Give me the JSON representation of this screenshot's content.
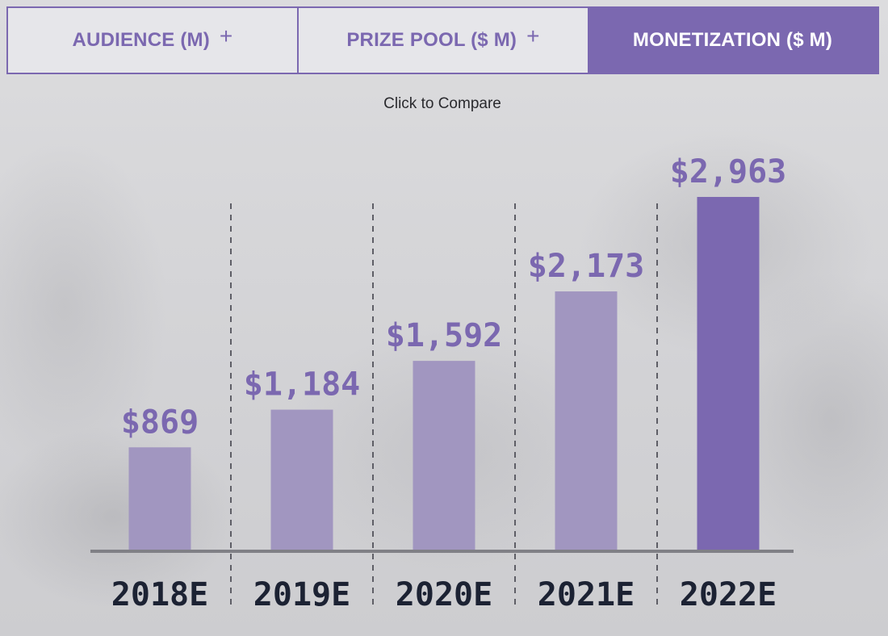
{
  "tabs": [
    {
      "label": "AUDIENCE (M)",
      "icon": "plus-icon",
      "glyph": "+",
      "active": false
    },
    {
      "label": "PRIZE POOL ($ M)",
      "icon": "plus-icon",
      "glyph": "+",
      "active": false
    },
    {
      "label": "MONETIZATION ($ M)",
      "active": true
    }
  ],
  "compare_hint": "Click to Compare",
  "colors": {
    "accent": "#7b68b0",
    "bar_light": "#a196c0",
    "bar_highlight": "#7b68b0",
    "category_text": "#1c2233"
  },
  "chart_data": {
    "type": "bar",
    "title": "MONETIZATION ($ M)",
    "categories": [
      "2018E",
      "2019E",
      "2020E",
      "2021E",
      "2022E"
    ],
    "values": [
      869,
      1184,
      1592,
      2173,
      2963
    ],
    "value_labels": [
      "$869",
      "$1,184",
      "$1,592",
      "$2,173",
      "$2,963"
    ],
    "highlight_index": 4,
    "ylim": [
      0,
      3800
    ],
    "xlabel": "",
    "ylabel": "",
    "grid": false,
    "separators": "dashed-vertical"
  }
}
